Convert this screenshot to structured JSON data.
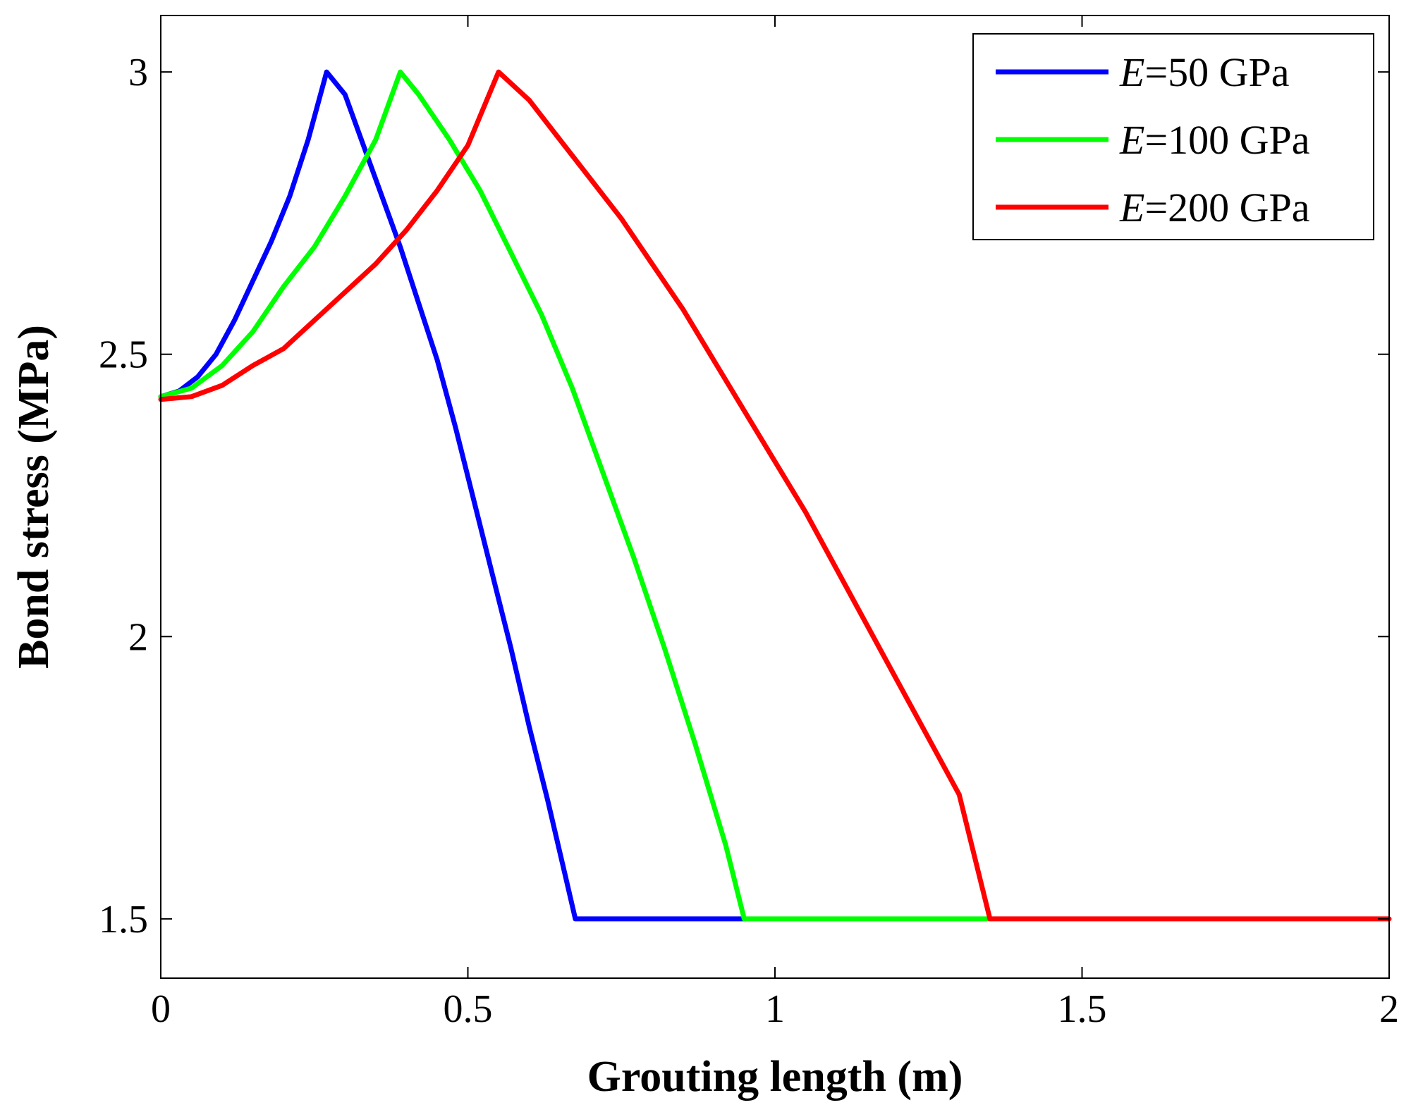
{
  "chart_data": {
    "type": "line",
    "title": "",
    "xlabel": "Grouting length (m)",
    "ylabel": "Bond stress (MPa)",
    "xlim": [
      0,
      2
    ],
    "ylim": [
      1.395,
      3.1
    ],
    "xticks": [
      0,
      0.5,
      1,
      1.5,
      2
    ],
    "xtick_labels": [
      "0",
      "0.5",
      "1",
      "1.5",
      "2"
    ],
    "yticks": [
      1.5,
      2,
      2.5,
      3
    ],
    "ytick_labels": [
      "1.5",
      "2",
      "2.5",
      "3"
    ],
    "grid": false,
    "legend_position": "top-right",
    "series": [
      {
        "name": "E=50 GPa",
        "symbol": "E",
        "label_suffix": "=50 GPa",
        "color": "#0000ff",
        "points": [
          [
            0,
            2.425
          ],
          [
            0.03,
            2.435
          ],
          [
            0.06,
            2.46
          ],
          [
            0.09,
            2.5
          ],
          [
            0.12,
            2.56
          ],
          [
            0.15,
            2.63
          ],
          [
            0.18,
            2.7
          ],
          [
            0.21,
            2.78
          ],
          [
            0.24,
            2.88
          ],
          [
            0.27,
            3.0
          ],
          [
            0.3,
            2.96
          ],
          [
            0.33,
            2.87
          ],
          [
            0.36,
            2.78
          ],
          [
            0.39,
            2.69
          ],
          [
            0.42,
            2.59
          ],
          [
            0.45,
            2.49
          ],
          [
            0.48,
            2.37
          ],
          [
            0.51,
            2.24
          ],
          [
            0.54,
            2.11
          ],
          [
            0.57,
            1.98
          ],
          [
            0.6,
            1.84
          ],
          [
            0.63,
            1.71
          ],
          [
            0.66,
            1.57
          ],
          [
            0.675,
            1.5
          ],
          [
            0.95,
            1.5
          ]
        ]
      },
      {
        "name": "E=100 GPa",
        "symbol": "E",
        "label_suffix": "=100 GPa",
        "color": "#00ff00",
        "points": [
          [
            0,
            2.425
          ],
          [
            0.05,
            2.44
          ],
          [
            0.1,
            2.48
          ],
          [
            0.15,
            2.54
          ],
          [
            0.2,
            2.62
          ],
          [
            0.25,
            2.69
          ],
          [
            0.3,
            2.78
          ],
          [
            0.35,
            2.88
          ],
          [
            0.39,
            3.0
          ],
          [
            0.42,
            2.96
          ],
          [
            0.47,
            2.88
          ],
          [
            0.52,
            2.79
          ],
          [
            0.57,
            2.68
          ],
          [
            0.62,
            2.57
          ],
          [
            0.67,
            2.44
          ],
          [
            0.72,
            2.29
          ],
          [
            0.77,
            2.14
          ],
          [
            0.82,
            1.98
          ],
          [
            0.87,
            1.81
          ],
          [
            0.92,
            1.63
          ],
          [
            0.95,
            1.5
          ],
          [
            1.35,
            1.5
          ]
        ]
      },
      {
        "name": "E=200 GPa",
        "symbol": "E",
        "label_suffix": "=200 GPa",
        "color": "#ff0000",
        "points": [
          [
            0,
            2.42
          ],
          [
            0.05,
            2.425
          ],
          [
            0.1,
            2.445
          ],
          [
            0.15,
            2.48
          ],
          [
            0.2,
            2.51
          ],
          [
            0.25,
            2.56
          ],
          [
            0.3,
            2.61
          ],
          [
            0.35,
            2.66
          ],
          [
            0.4,
            2.72
          ],
          [
            0.45,
            2.79
          ],
          [
            0.5,
            2.87
          ],
          [
            0.55,
            3.0
          ],
          [
            0.6,
            2.95
          ],
          [
            0.65,
            2.88
          ],
          [
            0.7,
            2.81
          ],
          [
            0.75,
            2.74
          ],
          [
            0.8,
            2.66
          ],
          [
            0.85,
            2.58
          ],
          [
            0.9,
            2.49
          ],
          [
            0.95,
            2.4
          ],
          [
            1.0,
            2.31
          ],
          [
            1.05,
            2.22
          ],
          [
            1.1,
            2.12
          ],
          [
            1.15,
            2.02
          ],
          [
            1.2,
            1.92
          ],
          [
            1.25,
            1.82
          ],
          [
            1.3,
            1.72
          ],
          [
            1.35,
            1.5
          ],
          [
            2.0,
            1.5
          ]
        ]
      }
    ]
  }
}
